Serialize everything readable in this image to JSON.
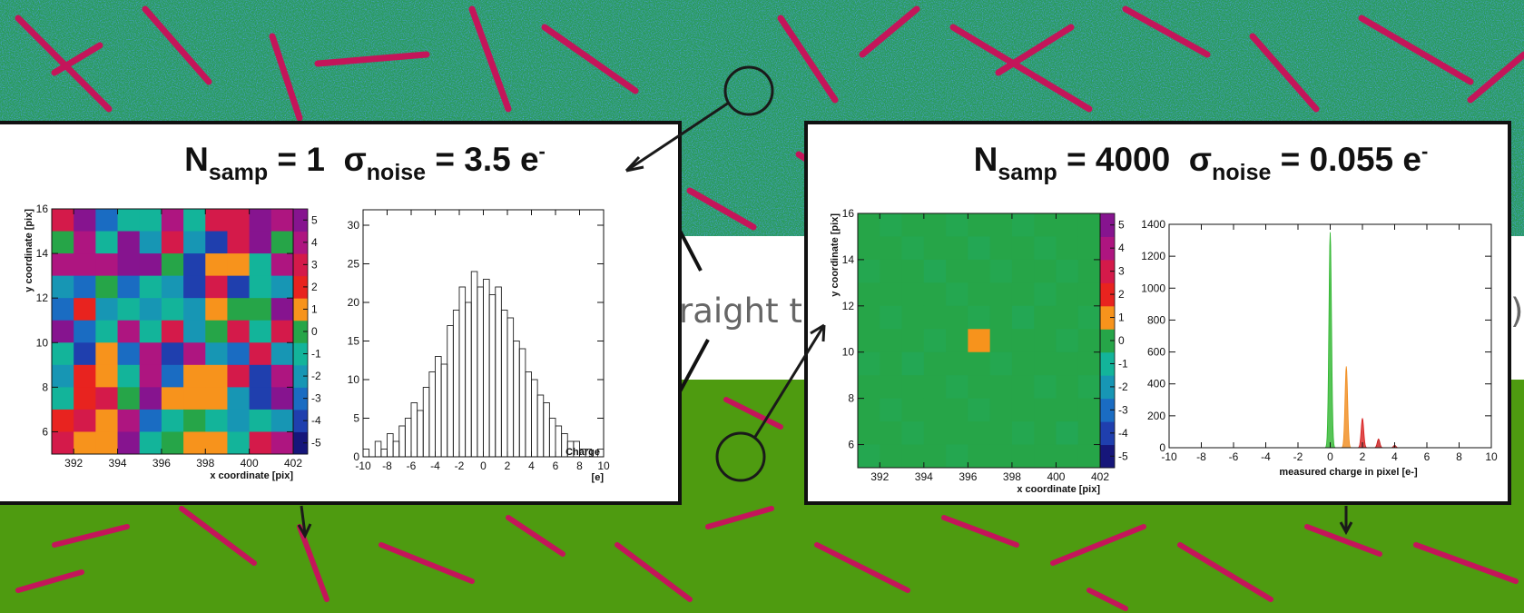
{
  "background_text": [
    "raight tr",
    ")"
  ],
  "panels": [
    {
      "title": {
        "symbol": "N",
        "symbol_sub": "samp",
        "eq": " = 1  σ",
        "sigma_sub": "noise",
        "value": " = 3.5 e",
        "value_sup": "-"
      }
    },
    {
      "title": {
        "symbol": "N",
        "symbol_sub": "samp",
        "eq": " = 4000  σ",
        "sigma_sub": "noise",
        "value": " = 0.055 e",
        "value_sup": "-"
      }
    }
  ],
  "chart_data": [
    {
      "type": "heatmap",
      "xlabel": "x coordinate [pix]",
      "ylabel": "y coordinate [pix]",
      "xlim": [
        391,
        402
      ],
      "ylim": [
        5,
        16
      ],
      "xticks": [
        392,
        394,
        396,
        398,
        400,
        402
      ],
      "yticks": [
        6,
        8,
        10,
        12,
        14,
        16
      ],
      "zlim": [
        -5.5,
        5.5
      ],
      "zticks": [
        -5,
        -4,
        -3,
        -2,
        -1,
        0,
        1,
        2,
        3,
        4,
        5
      ],
      "colorscale": [
        "#16167a",
        "#1f3fae",
        "#1a6cc2",
        "#1796b4",
        "#13b49a",
        "#26a548",
        "#f7931c",
        "#e8231f",
        "#d41a4a",
        "#ae1580",
        "#86148f"
      ],
      "z": [
        [
          3,
          5,
          -3,
          -1,
          -1,
          4,
          -1,
          3,
          3,
          5,
          4
        ],
        [
          0,
          4,
          -1,
          5,
          -2,
          3,
          -2,
          -4,
          3,
          5,
          0
        ],
        [
          4,
          4,
          4,
          5,
          5,
          0,
          -4,
          1,
          1,
          -1,
          4
        ],
        [
          -2,
          -3,
          0,
          -3,
          -1,
          -2,
          -4,
          3,
          -4,
          -1,
          -2
        ],
        [
          -3,
          2,
          -2,
          -1,
          -2,
          -1,
          -2,
          1,
          0,
          0,
          5
        ],
        [
          5,
          -3,
          -1,
          4,
          -1,
          3,
          -2,
          0,
          3,
          -1,
          3
        ],
        [
          -1,
          -4,
          1,
          -3,
          4,
          -4,
          4,
          -2,
          -3,
          3,
          -2
        ],
        [
          -2,
          2,
          1,
          -1,
          4,
          -3,
          1,
          1,
          3,
          -4,
          4
        ],
        [
          -1,
          2,
          3,
          0,
          5,
          1,
          1,
          1,
          -2,
          -4,
          5
        ],
        [
          2,
          3,
          1,
          4,
          -3,
          -1,
          0,
          -1,
          -2,
          -1,
          -2
        ],
        [
          3,
          1,
          1,
          5,
          -1,
          0,
          1,
          1,
          -1,
          3,
          4
        ]
      ]
    },
    {
      "type": "histogram",
      "xlabel": "Charge",
      "xunit": "[e]",
      "xlim": [
        -10,
        10
      ],
      "ylim": [
        0,
        32
      ],
      "xticks": [
        -10,
        -8,
        -6,
        -4,
        -2,
        0,
        2,
        4,
        6,
        8,
        10
      ],
      "yticks": [
        0,
        5,
        10,
        15,
        20,
        25,
        30
      ],
      "color": "#222222",
      "bins": [
        -10,
        -9.5,
        -9,
        -8.5,
        -8,
        -7.5,
        -7,
        -6.5,
        -6,
        -5.5,
        -5,
        -4.5,
        -4,
        -3.5,
        -3,
        -2.5,
        -2,
        -1.5,
        -1,
        -0.5,
        0,
        0.5,
        1,
        1.5,
        2,
        2.5,
        3,
        3.5,
        4,
        4.5,
        5,
        5.5,
        6,
        6.5,
        7,
        7.5,
        8,
        8.5,
        9,
        9.5,
        10
      ],
      "values": [
        1,
        0,
        2,
        1,
        3,
        2,
        4,
        5,
        7,
        6,
        9,
        11,
        13,
        12,
        17,
        19,
        22,
        20,
        24,
        22,
        23,
        21,
        22,
        19,
        18,
        15,
        14,
        11,
        10,
        8,
        7,
        5,
        4,
        3,
        2,
        2,
        1,
        1,
        0,
        1
      ]
    },
    {
      "type": "heatmap",
      "xlabel": "x coordinate [pix]",
      "ylabel": "y coordinate [pix]",
      "xlim": [
        391,
        402
      ],
      "ylim": [
        5,
        16
      ],
      "xticks": [
        392,
        394,
        396,
        398,
        400,
        402
      ],
      "yticks": [
        6,
        8,
        10,
        12,
        14,
        16
      ],
      "zlim": [
        -5.5,
        5.5
      ],
      "zticks": [
        -5,
        -4,
        -3,
        -2,
        -1,
        0,
        1,
        2,
        3,
        4,
        5
      ],
      "colorscale": [
        "#16167a",
        "#1f3fae",
        "#1a6cc2",
        "#1796b4",
        "#13b49a",
        "#26a548",
        "#f7931c",
        "#e8231f",
        "#d41a4a",
        "#ae1580",
        "#86148f"
      ],
      "z": [
        [
          0,
          -0.1,
          0,
          0,
          -0.1,
          0,
          0,
          -0.1,
          0,
          0,
          0
        ],
        [
          0,
          0,
          -0.1,
          0,
          0,
          -0.15,
          0,
          0,
          -0.1,
          0,
          0
        ],
        [
          -0.1,
          0,
          0,
          -0.15,
          0,
          0,
          -0.1,
          0,
          0,
          -0.1,
          0
        ],
        [
          0,
          0,
          0,
          0,
          -0.1,
          0,
          0,
          0,
          -0.1,
          0,
          0
        ],
        [
          0,
          -0.1,
          0,
          0,
          0,
          -0.1,
          0,
          -0.15,
          0,
          0,
          -0.1
        ],
        [
          0,
          0,
          0,
          -0.1,
          0,
          1,
          0,
          0,
          0,
          -0.1,
          0
        ],
        [
          -0.1,
          0,
          -0.15,
          0,
          0,
          0,
          -0.1,
          0,
          0,
          0,
          0
        ],
        [
          0,
          0,
          0,
          0,
          -0.1,
          0,
          0,
          0,
          -0.1,
          0,
          -0.1
        ],
        [
          0,
          -0.1,
          0,
          0,
          0,
          -0.1,
          0,
          0,
          0,
          0,
          0
        ],
        [
          0,
          0,
          -0.1,
          0,
          0,
          0,
          0,
          -0.1,
          0,
          -0.15,
          0
        ],
        [
          -0.1,
          0,
          0,
          0,
          -0.1,
          0,
          0,
          0,
          0,
          0,
          0
        ]
      ]
    },
    {
      "type": "peaks",
      "xlabel": "measured charge in pixel [e-]",
      "xlim": [
        -10,
        10
      ],
      "ylim": [
        0,
        1400
      ],
      "xticks": [
        -10,
        -8,
        -6,
        -4,
        -2,
        0,
        2,
        4,
        6,
        8,
        10
      ],
      "yticks": [
        0,
        200,
        400,
        600,
        800,
        1000,
        1200,
        1400
      ],
      "series": [
        {
          "color": "#2db52d",
          "x": [
            0
          ],
          "values": [
            1350
          ]
        },
        {
          "color": "#f08a1a",
          "x": [
            1
          ],
          "values": [
            510
          ]
        },
        {
          "color": "#d81e1e",
          "x": [
            2
          ],
          "values": [
            185
          ]
        },
        {
          "color": "#c81a1a",
          "x": [
            3
          ],
          "values": [
            55
          ]
        },
        {
          "color": "#b81818",
          "x": [
            4
          ],
          "values": [
            15
          ]
        }
      ]
    }
  ]
}
